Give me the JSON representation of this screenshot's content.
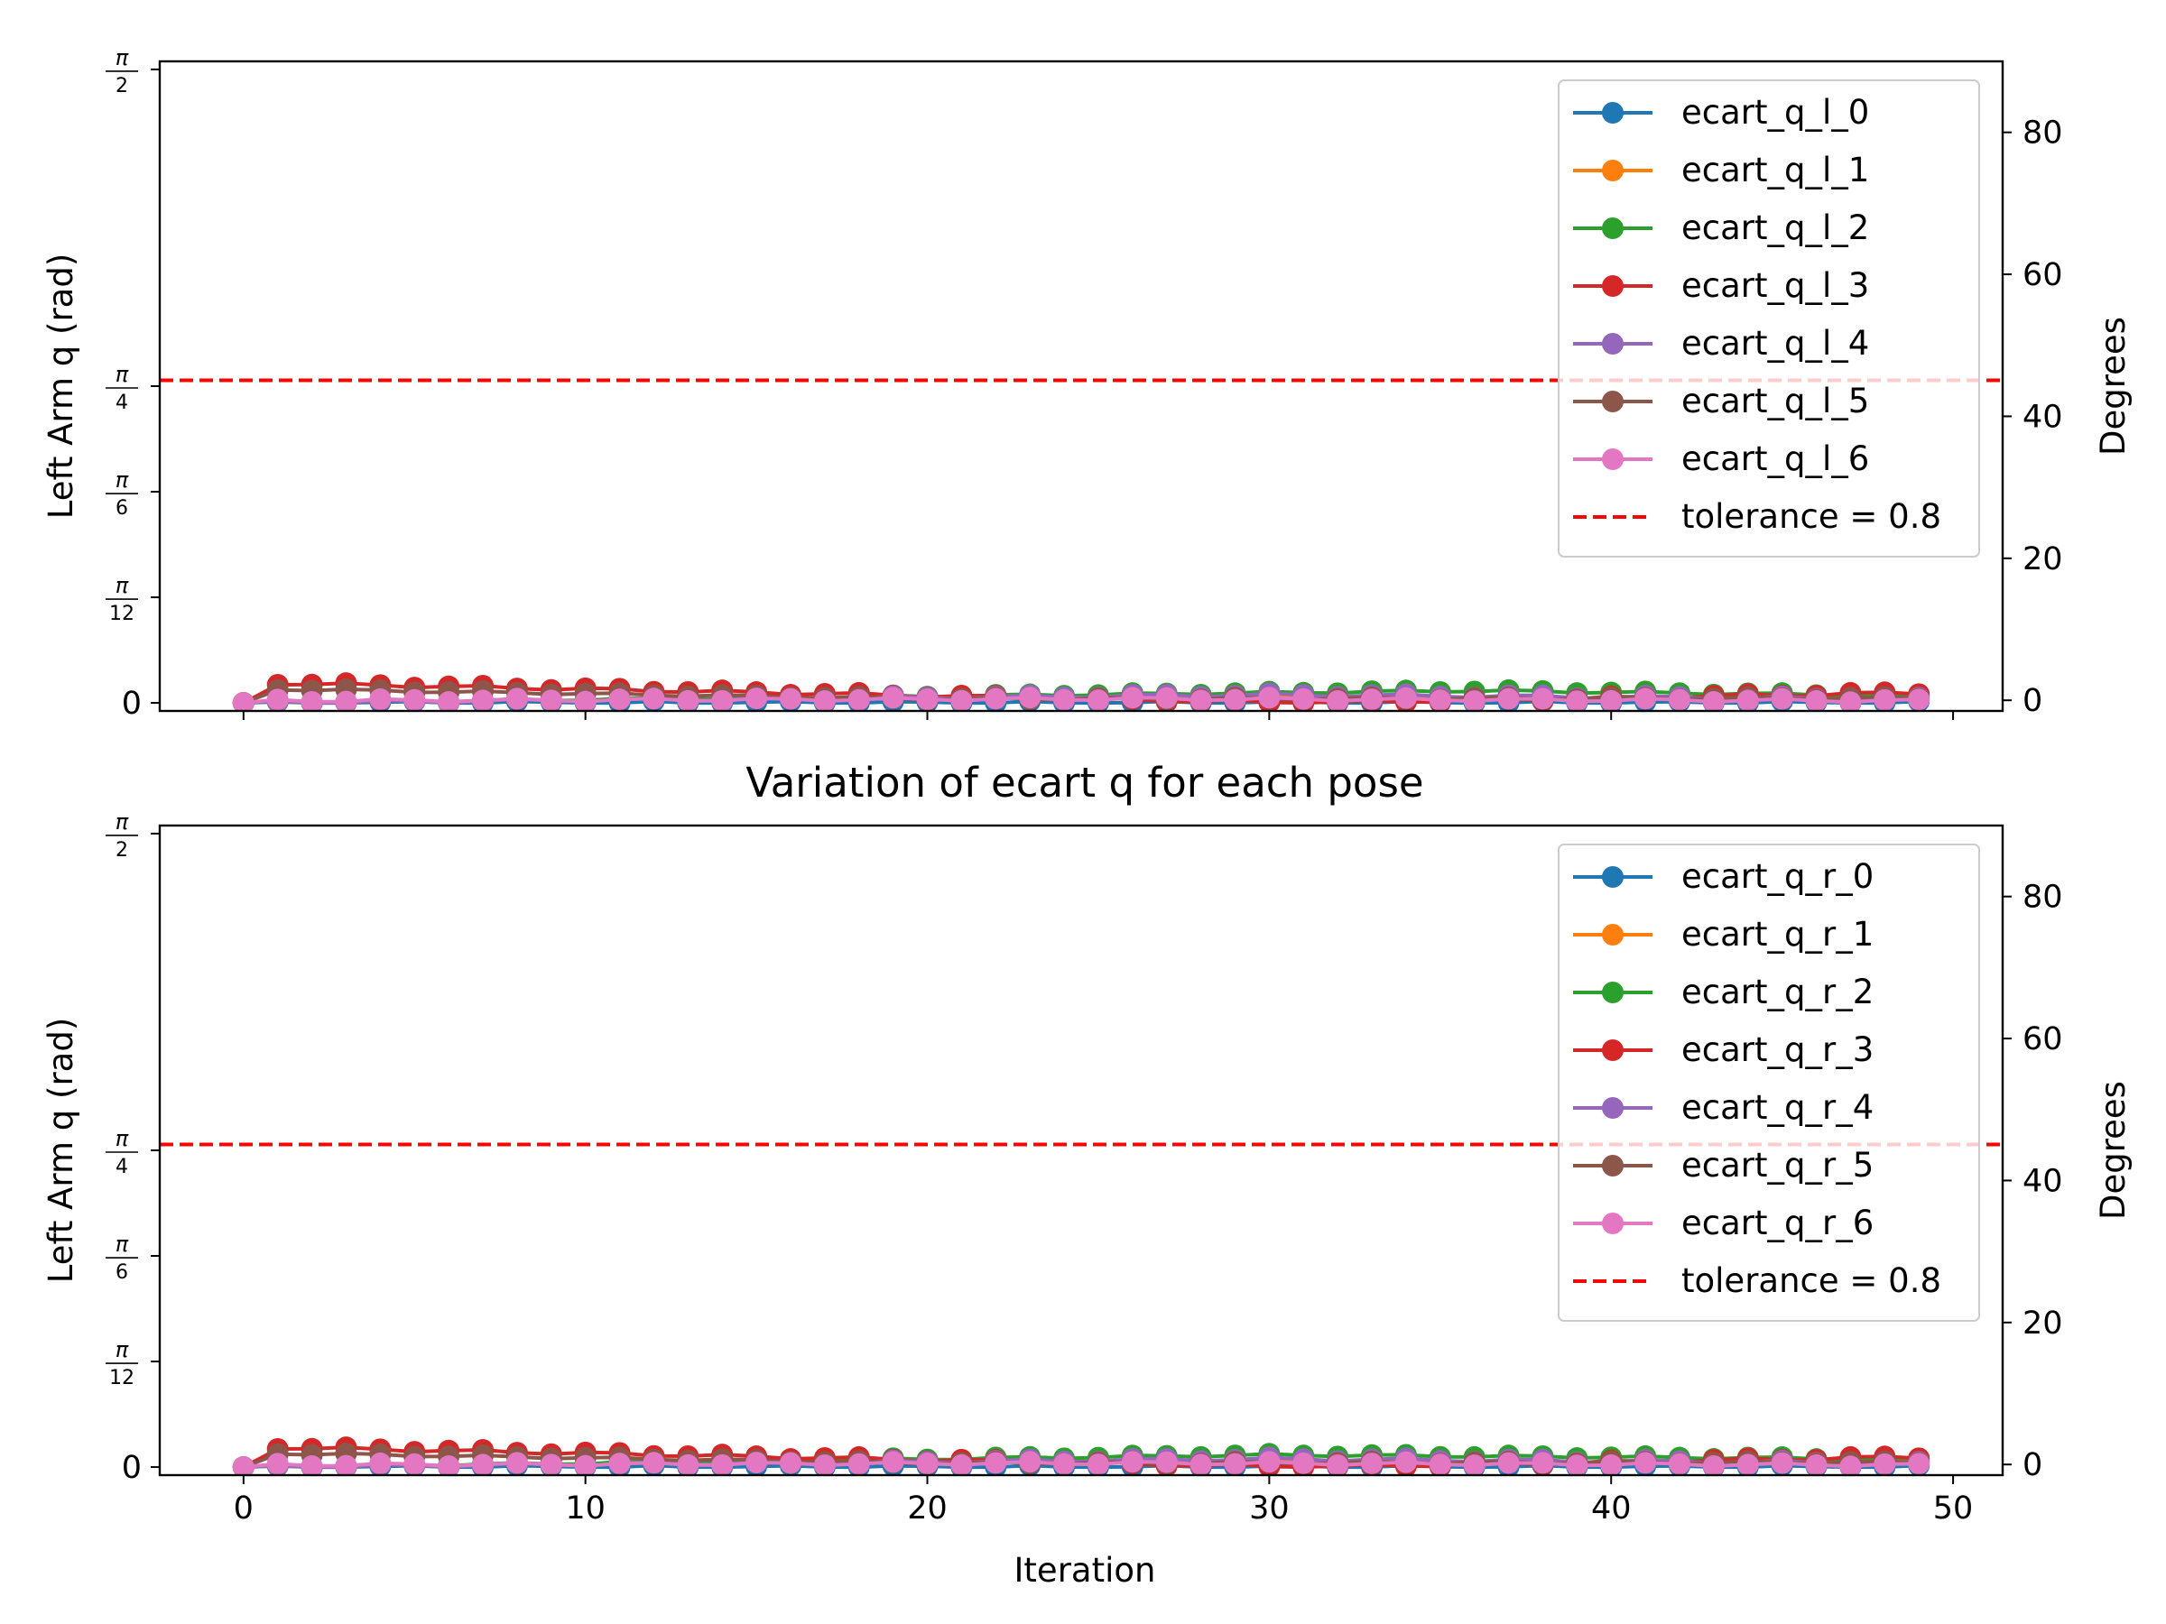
{
  "figure_title": "Variation of ecart q for each pose",
  "shared_xlabel": "Iteration",
  "chart_data": [
    {
      "type": "line",
      "ylabel": "Left Arm q (rad)",
      "ylabel_right": "Degrees",
      "x": [
        0,
        1,
        2,
        3,
        4,
        5,
        6,
        7,
        8,
        9,
        10,
        11,
        12,
        13,
        14,
        15,
        16,
        17,
        18,
        19,
        20,
        21,
        22,
        23,
        24,
        25,
        26,
        27,
        28,
        29,
        30,
        31,
        32,
        33,
        34,
        35,
        36,
        37,
        38,
        39,
        40,
        41,
        42,
        43,
        44,
        45,
        46,
        47,
        48,
        49
      ],
      "xlim": [
        -2.45,
        51.45
      ],
      "xticks": [
        0,
        10,
        20,
        30,
        40,
        50
      ],
      "ylim": [
        -0.02,
        1.5908
      ],
      "yticks": [
        {
          "value": 0,
          "num": "0",
          "den": ""
        },
        {
          "value": 0.2618,
          "num": "π",
          "den": "12"
        },
        {
          "value": 0.5236,
          "num": "π",
          "den": "6"
        },
        {
          "value": 0.7854,
          "num": "π",
          "den": "4"
        },
        {
          "value": 1.5708,
          "num": "π",
          "den": "2"
        }
      ],
      "yticks_right": [
        0,
        20,
        40,
        60,
        80
      ],
      "ylim_right": [
        -1.5,
        90
      ],
      "tolerance": {
        "value": 0.8,
        "label": "tolerance = 0.8",
        "color": "#ff0000"
      },
      "legend_position": "upper-right",
      "series": [
        {
          "name": "ecart_q_l_0",
          "color": "#1f77b4",
          "start": 0.0,
          "mid": 0.0,
          "end": 0.0,
          "peak": 25,
          "noise": 0.004
        },
        {
          "name": "ecart_q_l_1",
          "color": "#ff7f0e",
          "start": 0.002,
          "mid": 0.015,
          "end": 0.012,
          "peak": 25,
          "noise": 0.003
        },
        {
          "name": "ecart_q_l_2",
          "color": "#2ca02c",
          "start": 0.0,
          "mid": 0.03,
          "end": 0.018,
          "peak": 36,
          "noise": 0.003
        },
        {
          "name": "ecart_q_l_3",
          "color": "#d62728",
          "start": 0.05,
          "mid": 0.0,
          "end": 0.025,
          "peak": 31,
          "noise": 0.004
        },
        {
          "name": "ecart_q_l_4",
          "color": "#9467bd",
          "start": 0.0,
          "mid": 0.02,
          "end": 0.01,
          "peak": 30,
          "noise": 0.004
        },
        {
          "name": "ecart_q_l_5",
          "color": "#8c564b",
          "start": 0.035,
          "mid": 0.01,
          "end": 0.012,
          "peak": 20,
          "noise": 0.003
        },
        {
          "name": "ecart_q_l_6",
          "color": "#e377c2",
          "start": 0.005,
          "mid": 0.01,
          "end": 0.005,
          "peak": 26,
          "noise": 0.004
        }
      ]
    },
    {
      "type": "line",
      "ylabel": "Left Arm q (rad)",
      "ylabel_right": "Degrees",
      "x": [
        0,
        1,
        2,
        3,
        4,
        5,
        6,
        7,
        8,
        9,
        10,
        11,
        12,
        13,
        14,
        15,
        16,
        17,
        18,
        19,
        20,
        21,
        22,
        23,
        24,
        25,
        26,
        27,
        28,
        29,
        30,
        31,
        32,
        33,
        34,
        35,
        36,
        37,
        38,
        39,
        40,
        41,
        42,
        43,
        44,
        45,
        46,
        47,
        48,
        49
      ],
      "xlim": [
        -2.45,
        51.45
      ],
      "xticks": [
        0,
        10,
        20,
        30,
        40,
        50
      ],
      "ylim": [
        -0.02,
        1.5908
      ],
      "yticks": [
        {
          "value": 0,
          "num": "0",
          "den": ""
        },
        {
          "value": 0.2618,
          "num": "π",
          "den": "12"
        },
        {
          "value": 0.5236,
          "num": "π",
          "den": "6"
        },
        {
          "value": 0.7854,
          "num": "π",
          "den": "4"
        },
        {
          "value": 1.5708,
          "num": "π",
          "den": "2"
        }
      ],
      "yticks_right": [
        0,
        20,
        40,
        60,
        80
      ],
      "ylim_right": [
        -1.5,
        90
      ],
      "tolerance": {
        "value": 0.8,
        "label": "tolerance = 0.8",
        "color": "#ff0000"
      },
      "legend_position": "upper-right",
      "series": [
        {
          "name": "ecart_q_r_0",
          "color": "#1f77b4",
          "start": 0.0,
          "mid": 0.0,
          "end": 0.0,
          "peak": 25,
          "noise": 0.004
        },
        {
          "name": "ecart_q_r_1",
          "color": "#ff7f0e",
          "start": 0.002,
          "mid": 0.015,
          "end": 0.012,
          "peak": 25,
          "noise": 0.003
        },
        {
          "name": "ecart_q_r_2",
          "color": "#2ca02c",
          "start": 0.0,
          "mid": 0.03,
          "end": 0.02,
          "peak": 30,
          "noise": 0.003
        },
        {
          "name": "ecart_q_r_3",
          "color": "#d62728",
          "start": 0.05,
          "mid": 0.0,
          "end": 0.025,
          "peak": 31,
          "noise": 0.004
        },
        {
          "name": "ecart_q_r_4",
          "color": "#9467bd",
          "start": 0.0,
          "mid": 0.02,
          "end": 0.01,
          "peak": 30,
          "noise": 0.004
        },
        {
          "name": "ecart_q_r_5",
          "color": "#8c564b",
          "start": 0.035,
          "mid": 0.01,
          "end": 0.012,
          "peak": 20,
          "noise": 0.003
        },
        {
          "name": "ecart_q_r_6",
          "color": "#e377c2",
          "start": 0.005,
          "mid": 0.01,
          "end": 0.005,
          "peak": 26,
          "noise": 0.004
        }
      ]
    }
  ]
}
